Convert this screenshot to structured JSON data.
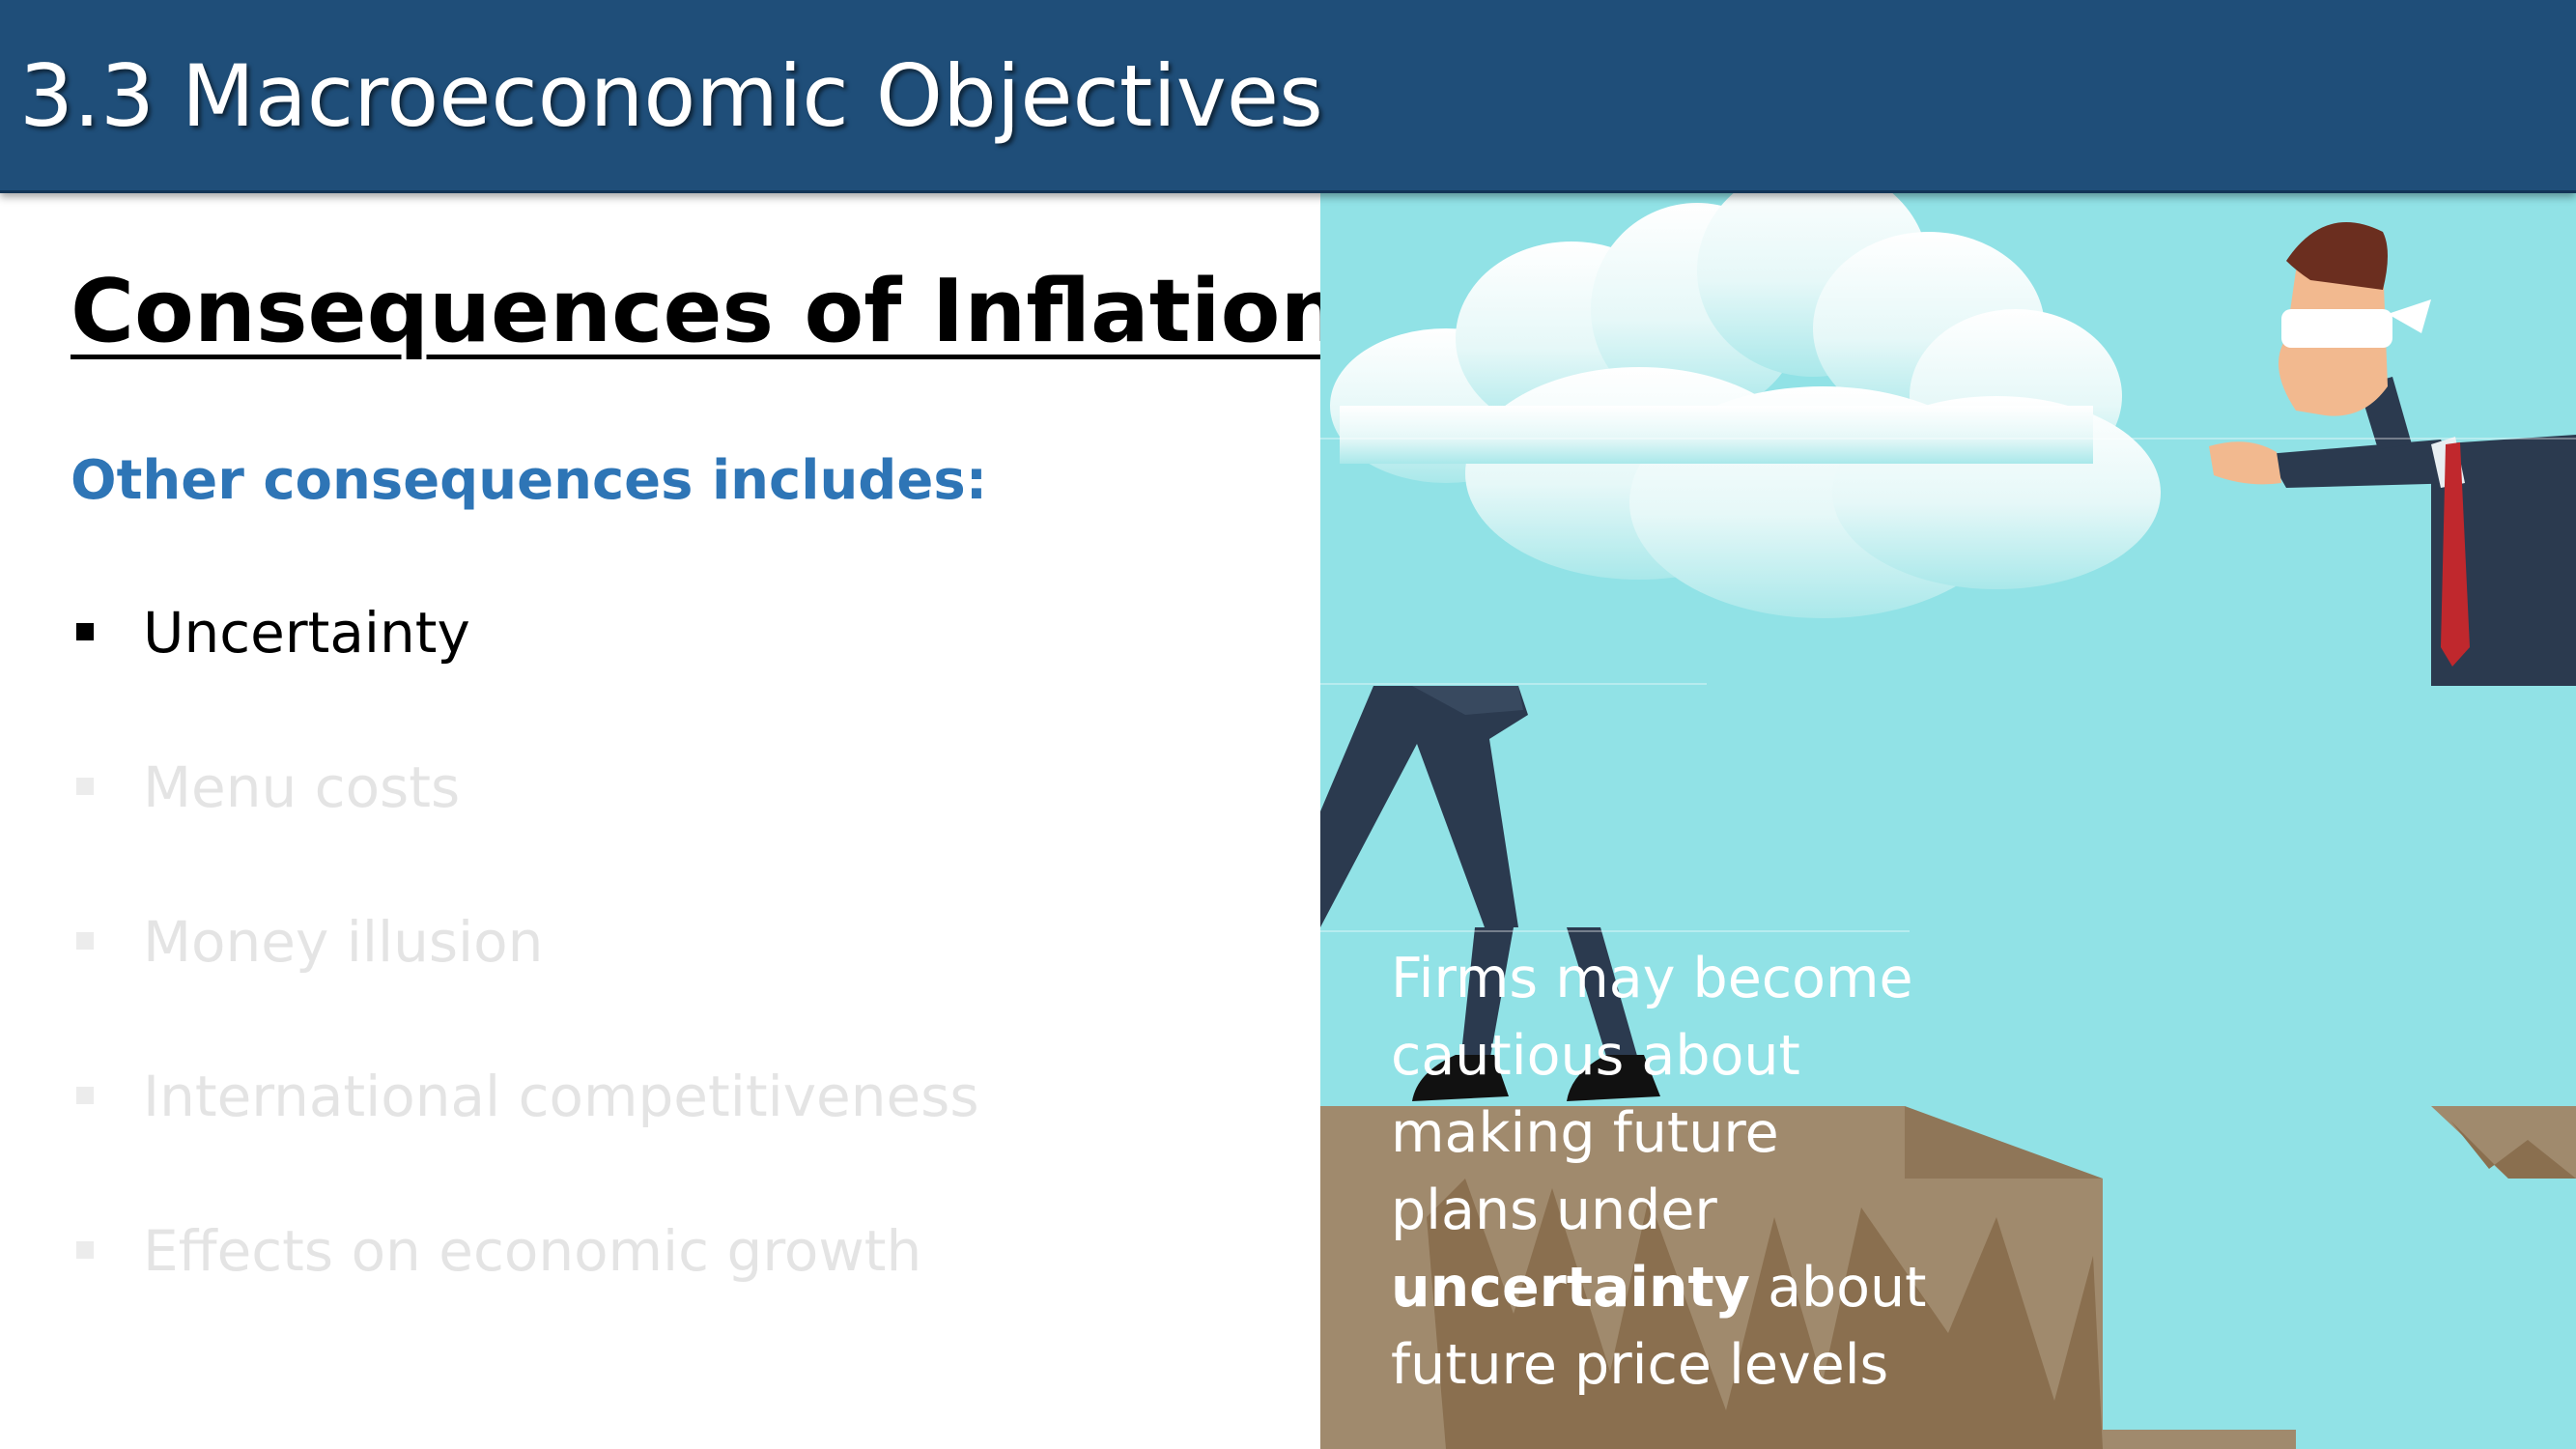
{
  "header": {
    "title": "3.3 Macroeconomic Objectives"
  },
  "slide": {
    "heading": "Consequences of Inflation",
    "subheading": "Other consequences includes:",
    "bullets": [
      {
        "label": "Uncertainty",
        "state": "active"
      },
      {
        "label": "Menu costs",
        "state": "faded"
      },
      {
        "label": "Money illusion",
        "state": "faded"
      },
      {
        "label": "International competitiveness",
        "state": "faded"
      },
      {
        "label": "Effects on economic growth",
        "state": "faded"
      }
    ]
  },
  "caption": {
    "line1": "Firms may become",
    "line2": "cautious about",
    "line3": "making future",
    "line4": "plans under",
    "line5_bold": "uncertainty",
    "line5_rest": " about",
    "line6": "future price levels"
  },
  "colors": {
    "header_bg": "#1f4e79",
    "subheading": "#2e75b6",
    "illustration_bg": "#91e2e6",
    "cliff": "#a08a6d",
    "suit": "#2b3a4f",
    "tie": "#c0282d"
  },
  "illustration": {
    "subject": "blindfolded businessman walking toward a cliff edge in the clouds"
  }
}
